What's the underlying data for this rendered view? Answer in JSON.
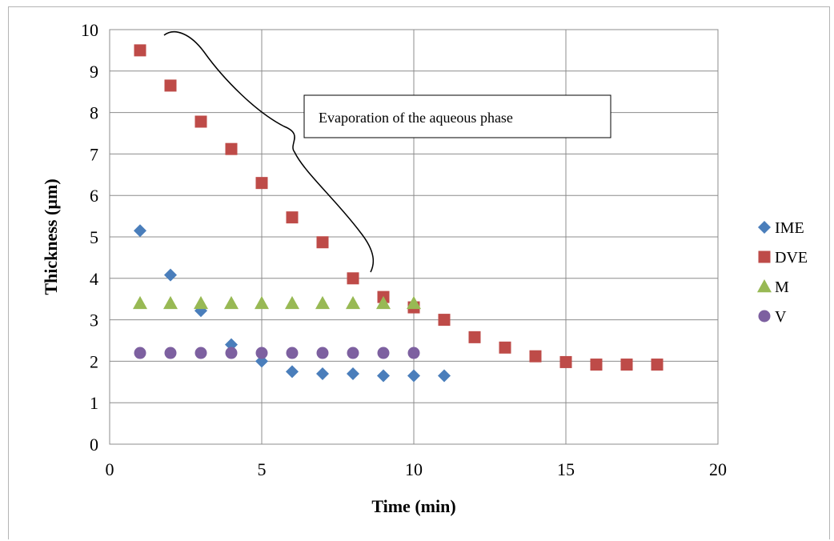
{
  "chart_data": {
    "type": "scatter",
    "xlabel": "Time (min)",
    "ylabel": "Thickness (µm)",
    "xlim": [
      0,
      20
    ],
    "ylim": [
      0,
      10
    ],
    "xticks": [
      0,
      5,
      10,
      15,
      20
    ],
    "yticks": [
      0,
      1,
      2,
      3,
      4,
      5,
      6,
      7,
      8,
      9,
      10
    ],
    "grid": true,
    "legend_position": "right",
    "annotation": "Evaporation of the aqueous phase",
    "series": [
      {
        "name": "IME",
        "marker": "diamond",
        "color": "#4a7ebb",
        "x": [
          1,
          2,
          3,
          4,
          5,
          6,
          7,
          8,
          9,
          10,
          11
        ],
        "y": [
          5.15,
          4.08,
          3.22,
          2.4,
          2.0,
          1.75,
          1.7,
          1.7,
          1.65,
          1.65,
          1.65
        ]
      },
      {
        "name": "DVE",
        "marker": "square",
        "color": "#be4b48",
        "x": [
          1,
          2,
          3,
          4,
          5,
          6,
          7,
          8,
          9,
          10,
          11,
          12,
          13,
          14,
          15,
          16,
          17,
          18
        ],
        "y": [
          9.5,
          8.65,
          7.78,
          7.12,
          6.3,
          5.47,
          4.87,
          4.0,
          3.55,
          3.3,
          3.0,
          2.58,
          2.33,
          2.12,
          1.98,
          1.92,
          1.92,
          1.92
        ]
      },
      {
        "name": "M",
        "marker": "triangle",
        "color": "#98b954",
        "x": [
          1,
          2,
          3,
          4,
          5,
          6,
          7,
          8,
          9,
          10
        ],
        "y": [
          3.4,
          3.4,
          3.4,
          3.4,
          3.4,
          3.4,
          3.4,
          3.4,
          3.4,
          3.4
        ]
      },
      {
        "name": "V",
        "marker": "circle",
        "color": "#7d60a0",
        "x": [
          1,
          2,
          3,
          4,
          5,
          6,
          7,
          8,
          9,
          10
        ],
        "y": [
          2.2,
          2.2,
          2.2,
          2.2,
          2.2,
          2.2,
          2.2,
          2.2,
          2.2,
          2.2
        ]
      }
    ]
  }
}
